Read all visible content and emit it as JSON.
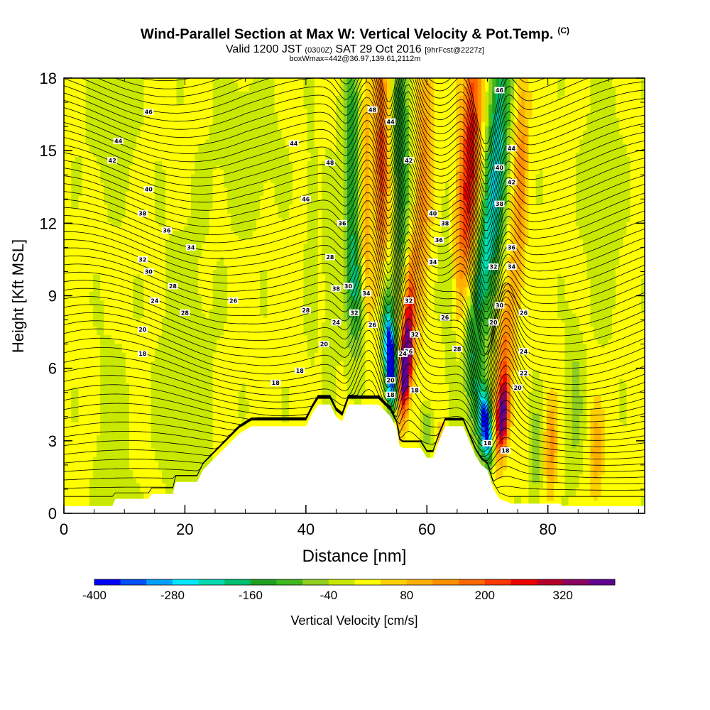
{
  "header": {
    "title": "Wind-Parallel Section at Max W: Vertical Velocity & Pot.Temp.",
    "copyright": "(C)",
    "valid_prefix": "Valid 1200 JST",
    "valid_utc": "(0300Z)",
    "valid_date": "SAT 29 Oct 2016",
    "forecast": "[9hrFcst@2227z]",
    "box_info": "boxWmax=442@36.97,139.61,2112m"
  },
  "chart_data": {
    "type": "heatmap",
    "xlabel": "Distance [nm]",
    "ylabel": "Height [Kft MSL]",
    "xlim": [
      0,
      96
    ],
    "ylim": [
      0,
      18
    ],
    "x_ticks": [
      0,
      20,
      40,
      60,
      80
    ],
    "y_ticks": [
      0,
      3,
      6,
      9,
      12,
      15,
      18
    ],
    "colorbar": {
      "label": "Vertical Velocity [cm/s]",
      "min": -400,
      "max": 400,
      "step": 40,
      "tick_values": [
        -400,
        -280,
        -160,
        -40,
        80,
        200,
        320
      ],
      "colors": [
        "#0000ff",
        "#0050ff",
        "#00a0ff",
        "#00e8ff",
        "#00d8b0",
        "#00c070",
        "#20a020",
        "#40b820",
        "#90d020",
        "#c8e800",
        "#ffff00",
        "#ffd000",
        "#ffb000",
        "#ff9000",
        "#ff6800",
        "#ff3800",
        "#ee0000",
        "#b40028",
        "#880060",
        "#600090"
      ]
    },
    "terrain": [
      [
        0,
        0.3
      ],
      [
        8,
        0.3
      ],
      [
        8.5,
        0.6
      ],
      [
        14,
        0.6
      ],
      [
        14.5,
        0.8
      ],
      [
        18,
        0.8
      ],
      [
        18.5,
        1.3
      ],
      [
        22,
        1.3
      ],
      [
        23,
        1.8
      ],
      [
        25,
        2.3
      ],
      [
        27,
        2.8
      ],
      [
        29,
        3.3
      ],
      [
        31,
        3.6
      ],
      [
        40,
        3.6
      ],
      [
        41,
        4.1
      ],
      [
        42,
        4.5
      ],
      [
        44,
        4.5
      ],
      [
        45,
        4.0
      ],
      [
        46,
        3.8
      ],
      [
        47,
        4.5
      ],
      [
        52,
        4.5
      ],
      [
        54,
        4.0
      ],
      [
        55,
        3.5
      ],
      [
        55.5,
        2.8
      ],
      [
        56,
        2.7
      ],
      [
        59,
        2.7
      ],
      [
        60,
        2.3
      ],
      [
        61,
        2.3
      ],
      [
        62,
        3.0
      ],
      [
        63,
        3.6
      ],
      [
        66,
        3.6
      ],
      [
        67,
        3.0
      ],
      [
        68,
        2.4
      ],
      [
        69,
        2.0
      ],
      [
        70,
        1.8
      ],
      [
        71,
        1.0
      ],
      [
        72,
        0.6
      ],
      [
        74,
        0.4
      ],
      [
        82,
        0.4
      ],
      [
        82.5,
        0.3
      ],
      [
        96,
        0.3
      ]
    ],
    "w_features": [
      {
        "x": 54.0,
        "y": 6.2,
        "rx": 0.9,
        "ry": 1.6,
        "w": -400,
        "tilt": -0.2
      },
      {
        "x": 53.5,
        "y": 7.5,
        "rx": 1.3,
        "ry": 3.0,
        "w": -180,
        "tilt": -0.2
      },
      {
        "x": 56.5,
        "y": 6.0,
        "rx": 1.0,
        "ry": 1.8,
        "w": 360,
        "tilt": 0.25
      },
      {
        "x": 56.8,
        "y": 7.8,
        "rx": 1.0,
        "ry": 3.2,
        "w": 220,
        "tilt": 0.25
      },
      {
        "x": 69.8,
        "y": 3.6,
        "rx": 1.0,
        "ry": 1.4,
        "w": -400,
        "tilt": -0.3
      },
      {
        "x": 67.5,
        "y": 6.0,
        "rx": 1.6,
        "ry": 3.5,
        "w": -150,
        "tilt": -0.3
      },
      {
        "x": 72.5,
        "y": 4.0,
        "rx": 1.0,
        "ry": 1.5,
        "w": 330,
        "tilt": 0.2
      },
      {
        "x": 72.8,
        "y": 6.5,
        "rx": 1.3,
        "ry": 3.5,
        "w": 160,
        "tilt": 0.3
      },
      {
        "x": 47.5,
        "y": 14.0,
        "rx": 1.4,
        "ry": 6.5,
        "w": -160,
        "tilt": 0.0
      },
      {
        "x": 48.5,
        "y": 9.0,
        "rx": 1.2,
        "ry": 2.5,
        "w": -110,
        "tilt": -0.2
      },
      {
        "x": 52.5,
        "y": 14.5,
        "rx": 1.2,
        "ry": 6.5,
        "w": 200,
        "tilt": 0.0
      },
      {
        "x": 55.8,
        "y": 15.0,
        "rx": 1.3,
        "ry": 5.5,
        "w": -170,
        "tilt": 0.0
      },
      {
        "x": 59.5,
        "y": 14.0,
        "rx": 1.3,
        "ry": 6.0,
        "w": 130,
        "tilt": 0.1
      },
      {
        "x": 67.0,
        "y": 14.5,
        "rx": 1.7,
        "ry": 6.5,
        "w": 260,
        "tilt": 0.2
      },
      {
        "x": 71.5,
        "y": 14.5,
        "rx": 1.8,
        "ry": 6.5,
        "w": -240,
        "tilt": 0.2
      },
      {
        "x": 69.0,
        "y": 10.0,
        "rx": 1.3,
        "ry": 3.0,
        "w": -130,
        "tilt": 0.3
      },
      {
        "x": 75.5,
        "y": 14.0,
        "rx": 1.2,
        "ry": 5.0,
        "w": 130,
        "tilt": 0.1
      },
      {
        "x": 64.0,
        "y": 8.0,
        "rx": 1.2,
        "ry": 4.0,
        "w": -70,
        "tilt": -0.2
      },
      {
        "x": 44.0,
        "y": 9.0,
        "rx": 1.0,
        "ry": 4.0,
        "w": -60,
        "tilt": 0.0
      },
      {
        "x": 41.0,
        "y": 11.0,
        "rx": 0.9,
        "ry": 4.5,
        "w": -45,
        "tilt": 0.0
      },
      {
        "x": 50.0,
        "y": 13.0,
        "rx": 0.9,
        "ry": 5.0,
        "w": 110,
        "tilt": 0.0
      },
      {
        "x": 20.0,
        "y": 5.0,
        "rx": 4.0,
        "ry": 6.0,
        "w": -50,
        "tilt": 0.0
      },
      {
        "x": 8.0,
        "y": 3.0,
        "rx": 2.5,
        "ry": 4.0,
        "w": -40,
        "tilt": 0.0
      },
      {
        "x": 78.0,
        "y": 2.5,
        "rx": 1.0,
        "ry": 2.0,
        "w": -90,
        "tilt": 0.0
      },
      {
        "x": 80.5,
        "y": 2.8,
        "rx": 1.0,
        "ry": 2.0,
        "w": 130,
        "tilt": 0.0
      },
      {
        "x": 84.5,
        "y": 4.5,
        "rx": 1.3,
        "ry": 3.0,
        "w": -70,
        "tilt": 0.0
      },
      {
        "x": 88.0,
        "y": 2.5,
        "rx": 1.2,
        "ry": 2.0,
        "w": 100,
        "tilt": 0.0
      },
      {
        "x": 89.0,
        "y": 13.0,
        "rx": 3.0,
        "ry": 5.0,
        "w": -40,
        "tilt": 0.0
      },
      {
        "x": 30.0,
        "y": 15.0,
        "rx": 5.0,
        "ry": 3.0,
        "w": -40,
        "tilt": 0.0
      },
      {
        "x": 8.0,
        "y": 16.0,
        "rx": 4.0,
        "ry": 3.0,
        "w": -35,
        "tilt": 0.0
      },
      {
        "x": 60.0,
        "y": 3.5,
        "rx": 1.0,
        "ry": 1.0,
        "w": -90,
        "tilt": 0.0
      },
      {
        "x": 62.5,
        "y": 2.8,
        "rx": 0.8,
        "ry": 0.8,
        "w": 120,
        "tilt": 0.0
      },
      {
        "x": 65.0,
        "y": 3.0,
        "rx": 0.8,
        "ry": 0.7,
        "w": -80,
        "tilt": 0.0
      }
    ],
    "theta_labels": [
      {
        "x": 35,
        "y": 5.4,
        "v": "18"
      },
      {
        "x": 39,
        "y": 5.9,
        "v": "18"
      },
      {
        "x": 13,
        "y": 6.6,
        "v": "18"
      },
      {
        "x": 13,
        "y": 7.6,
        "v": "20"
      },
      {
        "x": 20,
        "y": 8.3,
        "v": "28"
      },
      {
        "x": 28,
        "y": 8.8,
        "v": "26"
      },
      {
        "x": 15,
        "y": 8.8,
        "v": "24"
      },
      {
        "x": 18,
        "y": 9.4,
        "v": "28"
      },
      {
        "x": 14,
        "y": 10.0,
        "v": "30"
      },
      {
        "x": 13,
        "y": 10.5,
        "v": "32"
      },
      {
        "x": 21,
        "y": 11.0,
        "v": "34"
      },
      {
        "x": 17,
        "y": 11.7,
        "v": "36"
      },
      {
        "x": 13,
        "y": 12.4,
        "v": "38"
      },
      {
        "x": 14,
        "y": 13.4,
        "v": "40"
      },
      {
        "x": 8,
        "y": 14.6,
        "v": "42"
      },
      {
        "x": 9,
        "y": 15.4,
        "v": "44"
      },
      {
        "x": 14,
        "y": 16.6,
        "v": "46"
      },
      {
        "x": 38,
        "y": 15.3,
        "v": "44"
      },
      {
        "x": 40,
        "y": 13.0,
        "v": "46"
      },
      {
        "x": 44,
        "y": 14.5,
        "v": "48"
      },
      {
        "x": 46,
        "y": 12.0,
        "v": "36"
      },
      {
        "x": 44,
        "y": 10.6,
        "v": "28"
      },
      {
        "x": 45,
        "y": 9.3,
        "v": "38"
      },
      {
        "x": 47,
        "y": 9.4,
        "v": "30"
      },
      {
        "x": 50,
        "y": 9.1,
        "v": "34"
      },
      {
        "x": 40,
        "y": 8.4,
        "v": "28"
      },
      {
        "x": 45,
        "y": 7.9,
        "v": "24"
      },
      {
        "x": 48,
        "y": 8.3,
        "v": "32"
      },
      {
        "x": 51,
        "y": 7.8,
        "v": "26"
      },
      {
        "x": 43,
        "y": 7.0,
        "v": "20"
      },
      {
        "x": 51,
        "y": 16.7,
        "v": "48"
      },
      {
        "x": 54,
        "y": 16.2,
        "v": "44"
      },
      {
        "x": 57,
        "y": 14.6,
        "v": "42"
      },
      {
        "x": 57,
        "y": 8.8,
        "v": "32"
      },
      {
        "x": 58,
        "y": 7.4,
        "v": "32"
      },
      {
        "x": 57,
        "y": 6.7,
        "v": "26"
      },
      {
        "x": 56,
        "y": 6.6,
        "v": "24"
      },
      {
        "x": 54,
        "y": 5.5,
        "v": "20"
      },
      {
        "x": 54,
        "y": 4.9,
        "v": "18"
      },
      {
        "x": 58,
        "y": 5.1,
        "v": "18"
      },
      {
        "x": 61,
        "y": 12.4,
        "v": "40"
      },
      {
        "x": 63,
        "y": 12.0,
        "v": "38"
      },
      {
        "x": 62,
        "y": 11.3,
        "v": "36"
      },
      {
        "x": 61,
        "y": 10.4,
        "v": "34"
      },
      {
        "x": 63,
        "y": 8.1,
        "v": "26"
      },
      {
        "x": 65,
        "y": 6.8,
        "v": "28"
      },
      {
        "x": 72,
        "y": 17.5,
        "v": "46"
      },
      {
        "x": 74,
        "y": 15.1,
        "v": "44"
      },
      {
        "x": 72,
        "y": 14.3,
        "v": "40"
      },
      {
        "x": 74,
        "y": 13.7,
        "v": "42"
      },
      {
        "x": 72,
        "y": 12.8,
        "v": "38"
      },
      {
        "x": 74,
        "y": 11.0,
        "v": "36"
      },
      {
        "x": 74,
        "y": 10.2,
        "v": "34"
      },
      {
        "x": 71,
        "y": 10.2,
        "v": "32"
      },
      {
        "x": 72,
        "y": 8.6,
        "v": "30"
      },
      {
        "x": 71,
        "y": 7.9,
        "v": "20"
      },
      {
        "x": 76,
        "y": 8.3,
        "v": "26"
      },
      {
        "x": 76,
        "y": 6.7,
        "v": "24"
      },
      {
        "x": 76,
        "y": 5.8,
        "v": "22"
      },
      {
        "x": 75,
        "y": 5.2,
        "v": "20"
      },
      {
        "x": 70,
        "y": 2.9,
        "v": "18"
      },
      {
        "x": 73,
        "y": 2.6,
        "v": "18"
      }
    ]
  }
}
